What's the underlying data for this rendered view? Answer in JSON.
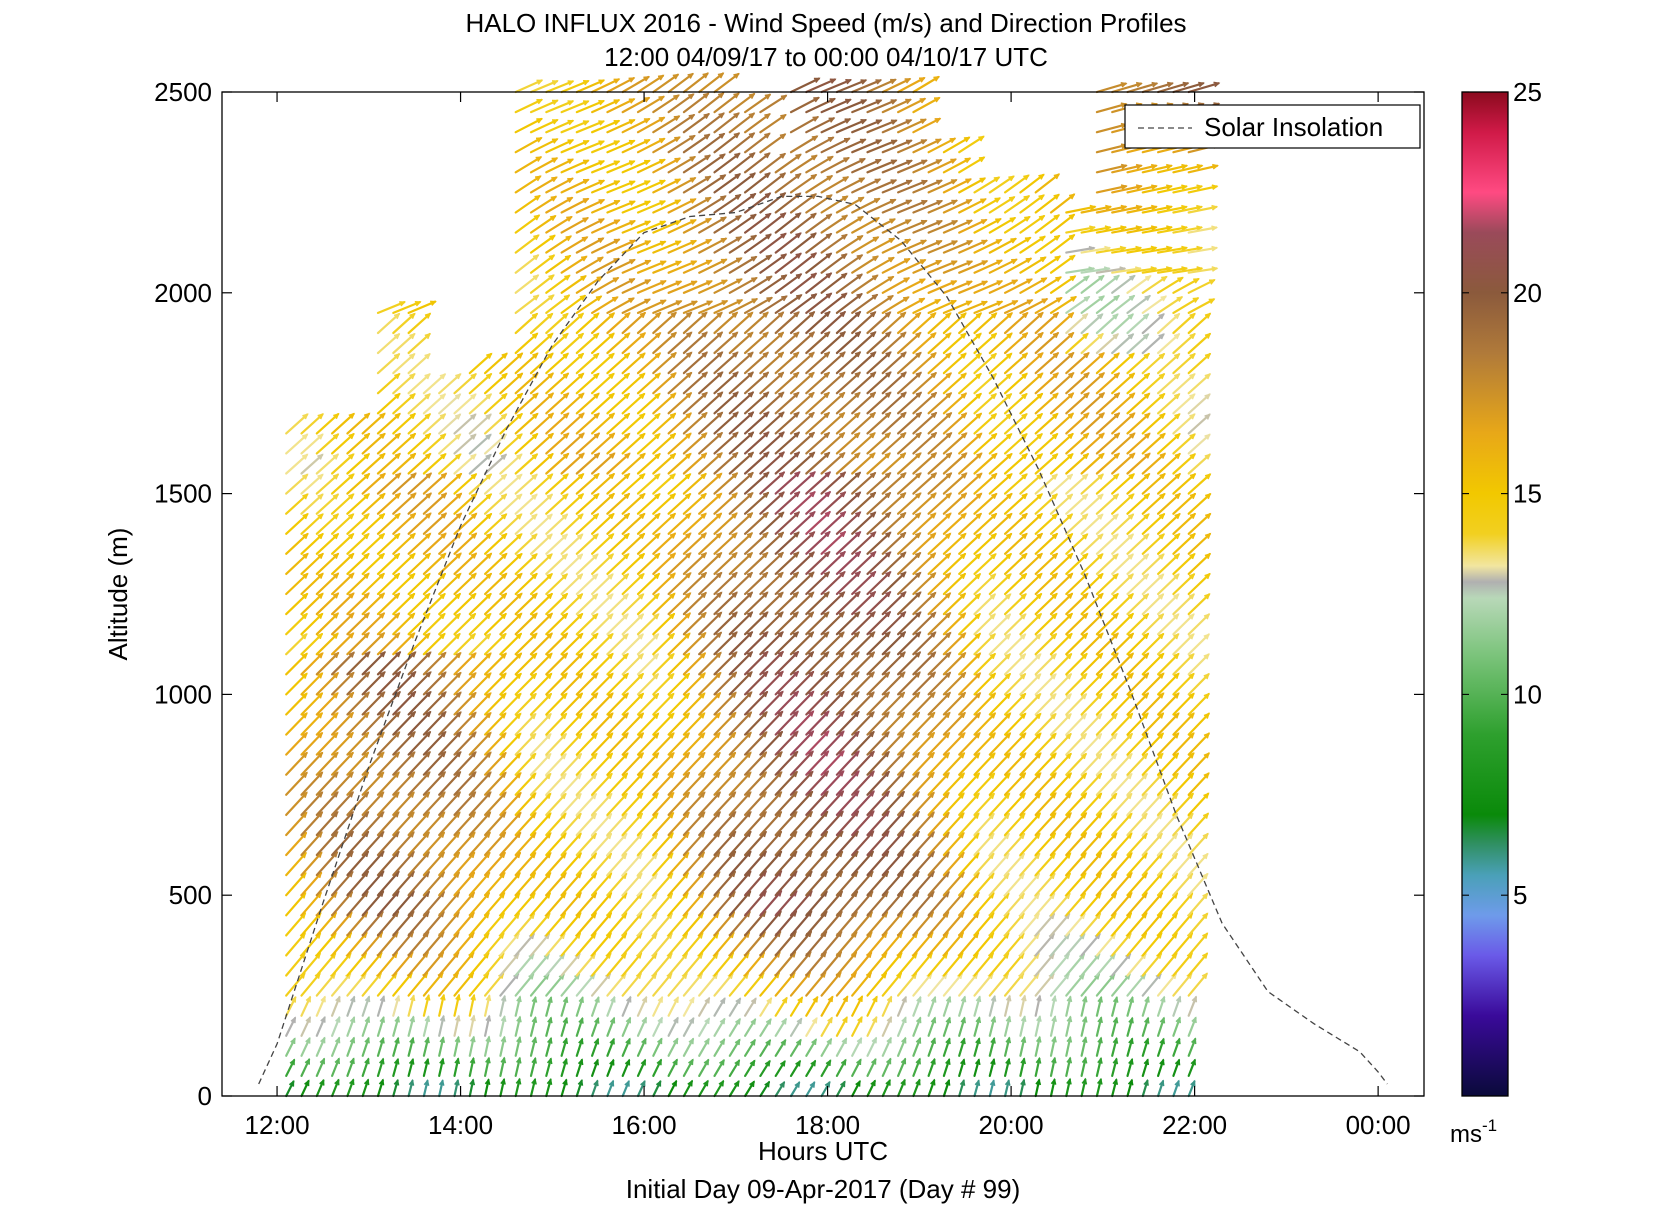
{
  "chart_data": {
    "type": "quiver",
    "title": "HALO INFLUX 2016 - Wind Speed (m/s) and Direction Profiles",
    "subtitle": "12:00 04/09/17 to 00:00 04/10/17  UTC",
    "xlabel": "Hours UTC",
    "footer": "Initial Day 09-Apr-2017 (Day # 99)",
    "ylabel": "Altitude (m)",
    "x_ticks": [
      "12:00",
      "14:00",
      "16:00",
      "18:00",
      "20:00",
      "22:00",
      "00:00"
    ],
    "x_tick_hours": [
      12,
      14,
      16,
      18,
      20,
      22,
      24
    ],
    "xlim_hours": [
      11.4,
      24.5
    ],
    "y_ticks": [
      0,
      500,
      1000,
      1500,
      2000,
      2500
    ],
    "ylim": [
      0,
      2500
    ],
    "legend": {
      "label": "Solar Insolation",
      "placement": "top-right"
    },
    "colorbar": {
      "ticks": [
        5,
        10,
        15,
        20,
        25
      ],
      "range": [
        0,
        25
      ],
      "unit_label": "ms",
      "unit_exponent": "-1",
      "stops": [
        [
          0,
          "#0a0a3a"
        ],
        [
          2,
          "#3a0a9a"
        ],
        [
          3.5,
          "#6a5ae8"
        ],
        [
          4.5,
          "#6e9bea"
        ],
        [
          5.5,
          "#4aa0b8"
        ],
        [
          6.3,
          "#2f8f60"
        ],
        [
          7,
          "#0a8a0a"
        ],
        [
          9,
          "#2ea02e"
        ],
        [
          11,
          "#7cc47c"
        ],
        [
          12.4,
          "#b8d8b8"
        ],
        [
          12.8,
          "#b0b0b0"
        ],
        [
          13.2,
          "#f2e6a0"
        ],
        [
          14,
          "#f2d020"
        ],
        [
          15,
          "#f2c800"
        ],
        [
          16.5,
          "#e8a818"
        ],
        [
          18.5,
          "#b07a3a"
        ],
        [
          20,
          "#8b5a3c"
        ],
        [
          21.5,
          "#9a4a5a"
        ],
        [
          22.5,
          "#ff4a82"
        ],
        [
          24,
          "#d01a48"
        ],
        [
          25,
          "#8b0a1e"
        ]
      ]
    },
    "solar_insolation": {
      "hours": [
        11.8,
        12.0,
        12.5,
        13.0,
        13.5,
        14.0,
        14.5,
        15.0,
        15.5,
        16.0,
        16.5,
        17.0,
        17.5,
        17.9,
        18.3,
        18.8,
        19.3,
        19.8,
        20.3,
        20.8,
        21.3,
        21.8,
        22.3,
        22.8,
        23.3,
        23.8,
        24.0,
        24.1
      ],
      "values": [
        30,
        130,
        480,
        820,
        1130,
        1420,
        1660,
        1870,
        2030,
        2150,
        2190,
        2200,
        2240,
        2240,
        2220,
        2130,
        1990,
        1790,
        1560,
        1300,
        1010,
        700,
        430,
        260,
        180,
        110,
        60,
        30
      ]
    },
    "wind_profiles": {
      "time_start_hours": 12.1,
      "time_step_hours": 0.1667,
      "time_count": 60,
      "altitude_start_m": 0,
      "altitude_step_m": 50,
      "altitude_max_m": 2500,
      "speed_range_ms": [
        2,
        25
      ],
      "coverage_top_m_by_time": [
        [
          12.1,
          1650
        ],
        [
          12.6,
          1650
        ],
        [
          13.1,
          1950
        ],
        [
          13.6,
          1750
        ],
        [
          14.1,
          1800
        ],
        [
          14.6,
          2500
        ],
        [
          16.6,
          2500
        ],
        [
          16.9,
          2450
        ],
        [
          17.3,
          2300
        ],
        [
          17.6,
          2500
        ],
        [
          19.0,
          2350
        ],
        [
          19.6,
          2250
        ],
        [
          20.3,
          2200
        ],
        [
          20.8,
          2500
        ],
        [
          24.0,
          2500
        ]
      ]
    }
  }
}
